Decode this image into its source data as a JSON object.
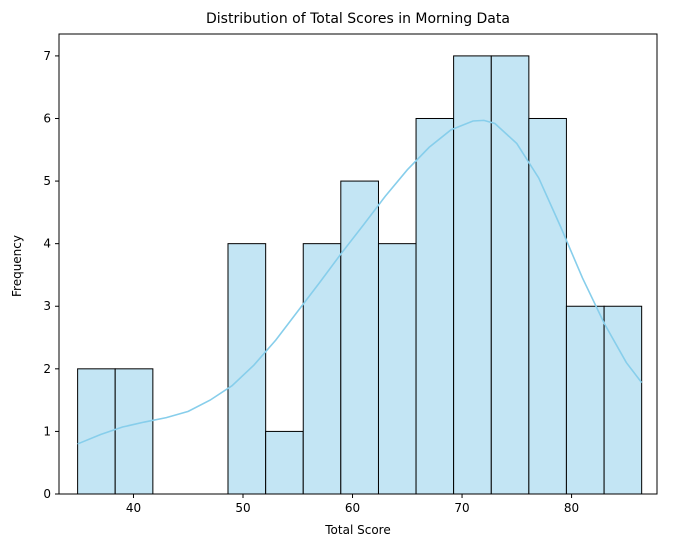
{
  "chart_data": {
    "type": "bar",
    "subtype": "histogram",
    "title": "Distribution of Total Scores in Morning Data",
    "xlabel": "Total Score",
    "ylabel": "Frequency",
    "xlim": [
      33.2,
      87.8
    ],
    "ylim": [
      0,
      7.35
    ],
    "xticks": [
      40,
      50,
      60,
      70,
      80
    ],
    "yticks": [
      0,
      1,
      2,
      3,
      4,
      5,
      6,
      7
    ],
    "bin_edges": [
      34.9,
      38.33,
      41.77,
      45.2,
      48.63,
      52.07,
      55.5,
      58.93,
      62.37,
      65.8,
      69.23,
      72.67,
      76.1,
      79.53,
      82.97,
      86.4
    ],
    "values": [
      2,
      2,
      0,
      0,
      4,
      1,
      4,
      5,
      4,
      6,
      7,
      7,
      6,
      3,
      3
    ],
    "kde": {
      "x": [
        34.9,
        37,
        39,
        41,
        43,
        45,
        47,
        49,
        51,
        53,
        55,
        57,
        59,
        61,
        63,
        65,
        67,
        69,
        71,
        72,
        73,
        75,
        77,
        79,
        81,
        83,
        85,
        86.4
      ],
      "y": [
        0.8,
        0.95,
        1.07,
        1.15,
        1.22,
        1.32,
        1.5,
        1.73,
        2.06,
        2.46,
        2.92,
        3.38,
        3.85,
        4.3,
        4.76,
        5.18,
        5.54,
        5.82,
        5.96,
        5.97,
        5.92,
        5.6,
        5.05,
        4.27,
        3.45,
        2.72,
        2.1,
        1.78
      ]
    },
    "grid": false,
    "colors": {
      "bar_fill": "#c3e5f4",
      "bar_edge": "#000000",
      "kde_line": "#87ceeb"
    }
  }
}
